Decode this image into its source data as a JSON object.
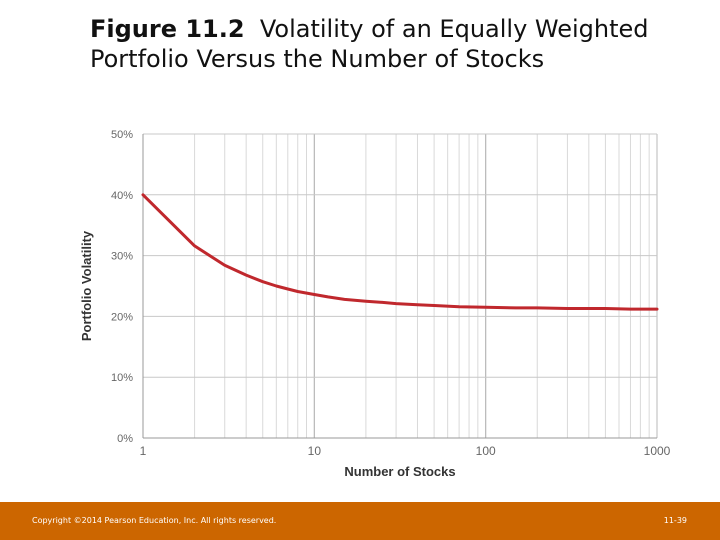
{
  "slide": {
    "figure_number": "Figure 11.2",
    "title_line1": "Volatility of an Equally Weighted",
    "title_line2": "Portfolio Versus the Number of Stocks"
  },
  "footer": {
    "copyright": "Copyright ©2014 Pearson Education, Inc. All rights reserved.",
    "page": "11-39",
    "color": "#cc6600"
  },
  "chart_data": {
    "type": "line",
    "title": "",
    "xlabel": "Number of Stocks",
    "ylabel": "Portfolio Volatility",
    "x_scale": "log",
    "xlim": [
      1,
      1000
    ],
    "ylim": [
      0,
      50
    ],
    "x_ticks": [
      "1",
      "10",
      "100",
      "1000"
    ],
    "y_ticks": [
      "0%",
      "10%",
      "20%",
      "30%",
      "40%",
      "50%"
    ],
    "grid": true,
    "line_color": "#c0282d",
    "series": [
      {
        "x": [
          1,
          2,
          3,
          4,
          5,
          6,
          7,
          8,
          10,
          12,
          15,
          20,
          25,
          30,
          40,
          50,
          70,
          100,
          150,
          200,
          300,
          500,
          700,
          1000
        ],
        "y": [
          40,
          31.6,
          28.4,
          26.8,
          25.7,
          25.0,
          24.5,
          24.1,
          23.6,
          23.2,
          22.8,
          22.5,
          22.3,
          22.1,
          21.9,
          21.8,
          21.6,
          21.5,
          21.4,
          21.4,
          21.3,
          21.3,
          21.2,
          21.2
        ]
      }
    ]
  }
}
